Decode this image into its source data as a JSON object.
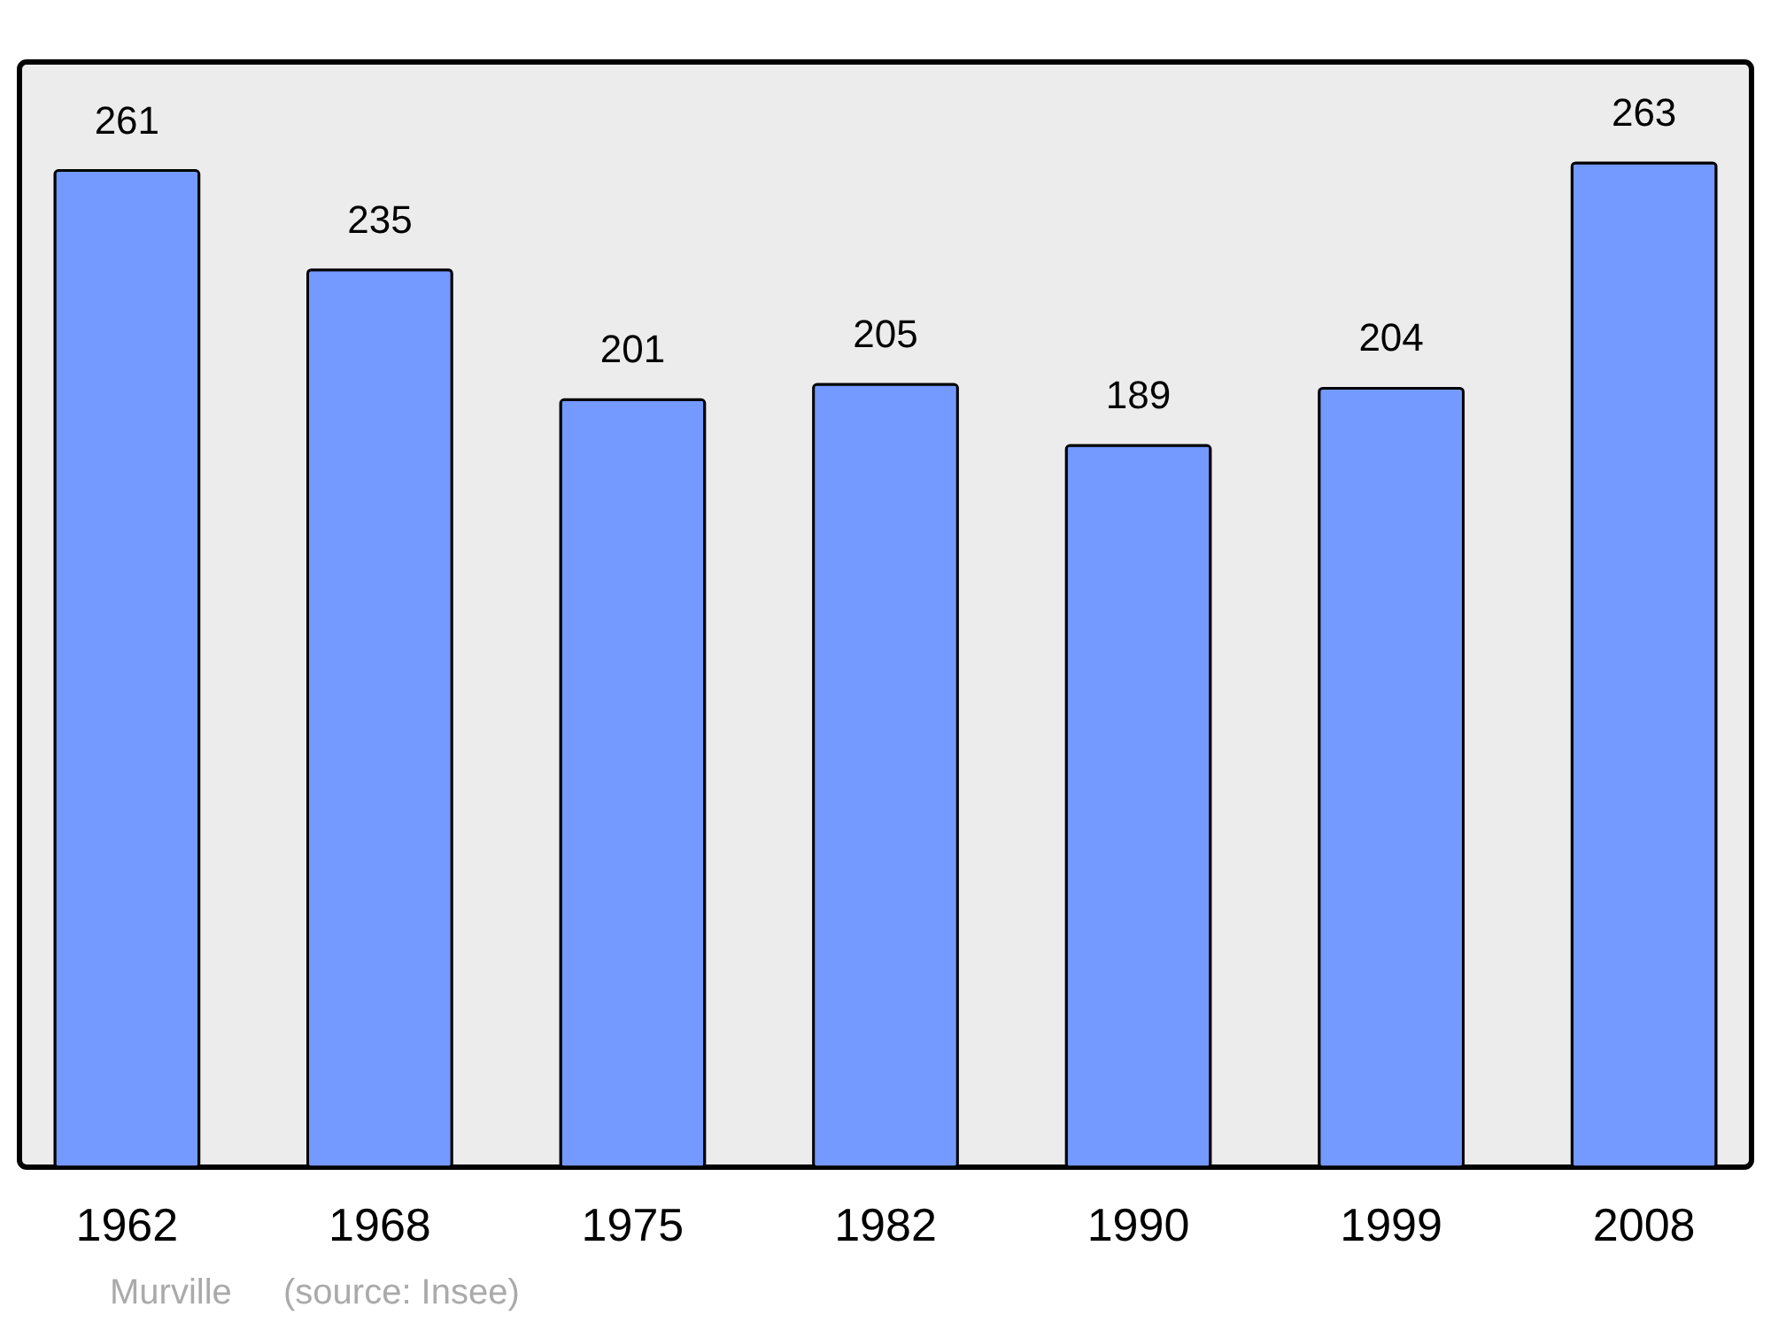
{
  "chart_data": {
    "type": "bar",
    "categories": [
      "1962",
      "1968",
      "1975",
      "1982",
      "1990",
      "1999",
      "2008"
    ],
    "values": [
      261,
      235,
      201,
      205,
      189,
      204,
      263
    ],
    "color": "#7499ff",
    "data_labels": true,
    "annotations": [
      "Murville",
      "(source: Insee)"
    ]
  }
}
